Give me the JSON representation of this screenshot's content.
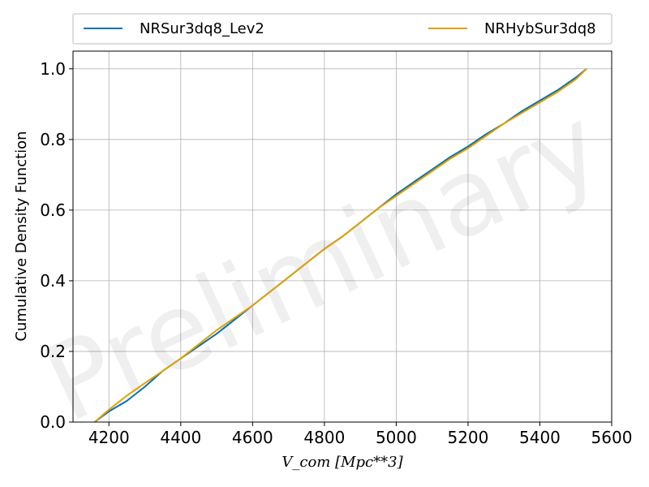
{
  "chart_data": {
    "type": "line",
    "title": "",
    "xlabel": "V_com [Mpc**3]",
    "ylabel": "Cumulative Density Function",
    "xlim": [
      4100,
      5600
    ],
    "ylim": [
      0.0,
      1.05
    ],
    "xticks": [
      "4200",
      "4400",
      "4600",
      "4800",
      "5000",
      "5200",
      "5400",
      "5600"
    ],
    "yticks": [
      "0.0",
      "0.2",
      "0.4",
      "0.6",
      "0.8",
      "1.0"
    ],
    "grid": true,
    "legend_position": "top",
    "watermark": "Preliminary",
    "series": [
      {
        "name": "NRSur3dq8_Lev2",
        "color": "#0072B2",
        "x": [
          4160,
          4200,
          4250,
          4300,
          4350,
          4400,
          4450,
          4500,
          4550,
          4600,
          4650,
          4700,
          4750,
          4800,
          4850,
          4900,
          4950,
          5000,
          5050,
          5100,
          5150,
          5200,
          5250,
          5300,
          5350,
          5400,
          5450,
          5500,
          5530
        ],
        "y": [
          0.0,
          0.03,
          0.06,
          0.1,
          0.145,
          0.18,
          0.215,
          0.25,
          0.29,
          0.33,
          0.37,
          0.41,
          0.45,
          0.49,
          0.525,
          0.565,
          0.605,
          0.645,
          0.68,
          0.715,
          0.75,
          0.78,
          0.815,
          0.845,
          0.88,
          0.91,
          0.94,
          0.975,
          1.0
        ]
      },
      {
        "name": "NRHybSur3dq8",
        "color": "#E69F00",
        "x": [
          4160,
          4200,
          4250,
          4300,
          4350,
          4400,
          4450,
          4500,
          4550,
          4600,
          4650,
          4700,
          4750,
          4800,
          4850,
          4900,
          4950,
          5000,
          5050,
          5100,
          5150,
          5200,
          5250,
          5300,
          5350,
          5400,
          5450,
          5500,
          5530
        ],
        "y": [
          0.0,
          0.035,
          0.075,
          0.11,
          0.145,
          0.18,
          0.22,
          0.26,
          0.295,
          0.33,
          0.37,
          0.41,
          0.45,
          0.49,
          0.525,
          0.565,
          0.605,
          0.64,
          0.675,
          0.71,
          0.745,
          0.775,
          0.81,
          0.845,
          0.875,
          0.905,
          0.935,
          0.97,
          1.0
        ]
      }
    ]
  }
}
